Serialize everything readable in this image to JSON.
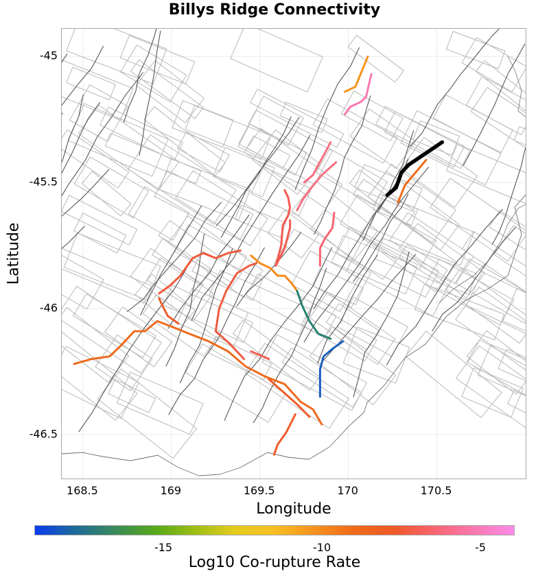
{
  "chart_data": {
    "type": "map-lines",
    "title": "Billys Ridge Connectivity",
    "xlabel": "Longitude",
    "ylabel": "Latitude",
    "xlim": [
      168.38,
      171.01
    ],
    "ylim": [
      -46.68,
      -44.89
    ],
    "x_ticks": [
      168.5,
      169,
      169.5,
      170,
      170.5
    ],
    "x_tick_labels": [
      "168.5",
      "169",
      "169.5",
      "170",
      "170.5"
    ],
    "y_ticks": [
      -45,
      -45.5,
      -46,
      -46.5
    ],
    "y_tick_labels": [
      "-45",
      "-45.5",
      "-46",
      "-46.5"
    ],
    "grid": true,
    "colorbar": {
      "label": "Log10 Co-rupture Rate",
      "range": [
        -19.07,
        -3.92
      ],
      "ticks": [
        -15,
        -10,
        -5
      ],
      "tick_labels": [
        "-15",
        "-10",
        "-5"
      ],
      "position": "bottom",
      "colors": [
        "#0a3cf0",
        "#1d6a9a",
        "#3a8a5a",
        "#56a81a",
        "#9cbe14",
        "#e4cc1c",
        "#f7bf24",
        "#f5911e",
        "#ef6a1a",
        "#ee5a28",
        "#f86470",
        "#fb78b0",
        "#fc8ce8"
      ]
    },
    "source_fault": {
      "name": "Billys Ridge",
      "color": "#000000",
      "path": [
        [
          170.22,
          -45.55
        ],
        [
          170.27,
          -45.52
        ],
        [
          170.3,
          -45.46
        ],
        [
          170.34,
          -45.43
        ],
        [
          170.53,
          -45.34
        ]
      ]
    },
    "connected_faults": [
      {
        "value": -7.3,
        "color": "#ef6a1a",
        "path": [
          [
            170.28,
            -45.58
          ],
          [
            170.32,
            -45.51
          ],
          [
            170.44,
            -45.41
          ]
        ]
      },
      {
        "value": -9.2,
        "color": "#f7941c",
        "path": [
          [
            169.98,
            -45.14
          ],
          [
            170.04,
            -45.12
          ],
          [
            170.11,
            -45.0
          ]
        ]
      },
      {
        "value": -4.7,
        "color": "#fb78b0",
        "path": [
          [
            169.98,
            -45.23
          ],
          [
            170.01,
            -45.2
          ],
          [
            170.07,
            -45.18
          ],
          [
            170.1,
            -45.16
          ],
          [
            170.13,
            -45.07
          ]
        ]
      },
      {
        "value": -5.6,
        "color": "#f86e80",
        "path": [
          [
            169.75,
            -45.5
          ],
          [
            169.8,
            -45.47
          ],
          [
            169.83,
            -45.43
          ],
          [
            169.87,
            -45.38
          ],
          [
            169.9,
            -45.34
          ]
        ]
      },
      {
        "value": -5.6,
        "color": "#f86e80",
        "path": [
          [
            169.71,
            -45.61
          ],
          [
            169.74,
            -45.57
          ],
          [
            169.78,
            -45.53
          ],
          [
            169.85,
            -45.47
          ],
          [
            169.93,
            -45.42
          ]
        ]
      },
      {
        "value": -5.8,
        "color": "#f86472",
        "path": [
          [
            169.84,
            -45.83
          ],
          [
            169.84,
            -45.76
          ],
          [
            169.87,
            -45.72
          ],
          [
            169.91,
            -45.68
          ],
          [
            169.92,
            -45.62
          ]
        ]
      },
      {
        "value": -6.4,
        "color": "#f45a50",
        "path": [
          [
            169.59,
            -45.83
          ],
          [
            169.62,
            -45.75
          ],
          [
            169.63,
            -45.67
          ],
          [
            169.66,
            -45.63
          ],
          [
            169.67,
            -45.6
          ],
          [
            169.66,
            -45.56
          ],
          [
            169.64,
            -45.53
          ]
        ]
      },
      {
        "value": -6.4,
        "color": "#f45a50",
        "path": [
          [
            169.59,
            -45.83
          ],
          [
            169.64,
            -45.76
          ],
          [
            169.67,
            -45.68
          ],
          [
            169.67,
            -45.65
          ]
        ]
      },
      {
        "value": -6.8,
        "color": "#f05a40",
        "path": [
          [
            169.25,
            -46.09
          ],
          [
            169.27,
            -46.0
          ],
          [
            169.31,
            -45.93
          ],
          [
            169.37,
            -45.86
          ],
          [
            169.44,
            -45.83
          ],
          [
            169.48,
            -45.82
          ]
        ]
      },
      {
        "value": -6.8,
        "color": "#f05a40",
        "path": [
          [
            169.25,
            -46.09
          ],
          [
            169.33,
            -46.14
          ],
          [
            169.41,
            -46.2
          ]
        ]
      },
      {
        "value": -6.3,
        "color": "#f45a50",
        "path": [
          [
            169.45,
            -46.17
          ],
          [
            169.55,
            -46.2
          ]
        ]
      },
      {
        "value": -6.9,
        "color": "#f05a3a",
        "path": [
          [
            168.93,
            -45.94
          ],
          [
            168.99,
            -45.91
          ],
          [
            169.05,
            -45.87
          ],
          [
            169.12,
            -45.8
          ],
          [
            169.18,
            -45.78
          ],
          [
            169.25,
            -45.8
          ],
          [
            169.32,
            -45.78
          ],
          [
            169.39,
            -45.77
          ]
        ]
      },
      {
        "value": -8.5,
        "color": "#f7891c",
        "path": [
          [
            169.45,
            -45.79
          ],
          [
            169.5,
            -45.82
          ],
          [
            169.56,
            -45.84
          ],
          [
            169.6,
            -45.87
          ],
          [
            169.64,
            -45.87
          ],
          [
            169.68,
            -45.9
          ],
          [
            169.71,
            -45.93
          ]
        ]
      },
      {
        "value": -15.9,
        "color": "#268070",
        "path": [
          [
            169.71,
            -45.93
          ],
          [
            169.74,
            -45.99
          ],
          [
            169.78,
            -46.05
          ],
          [
            169.83,
            -46.1
          ],
          [
            169.9,
            -46.12
          ]
        ]
      },
      {
        "value": -17.8,
        "color": "#1b5fc0",
        "path": [
          [
            169.84,
            -46.35
          ],
          [
            169.84,
            -46.24
          ],
          [
            169.86,
            -46.19
          ],
          [
            169.91,
            -46.16
          ],
          [
            169.97,
            -46.13
          ]
        ]
      },
      {
        "value": -7.5,
        "color": "#ee6a1c",
        "path": [
          [
            168.45,
            -46.22
          ],
          [
            168.55,
            -46.2
          ],
          [
            168.65,
            -46.19
          ],
          [
            168.71,
            -46.15
          ],
          [
            168.79,
            -46.09
          ],
          [
            168.85,
            -46.09
          ],
          [
            168.92,
            -46.05
          ],
          [
            169.03,
            -46.08
          ],
          [
            169.1,
            -46.1
          ],
          [
            169.21,
            -46.13
          ],
          [
            169.32,
            -46.17
          ],
          [
            169.42,
            -46.23
          ],
          [
            169.53,
            -46.27
          ],
          [
            169.64,
            -46.3
          ],
          [
            169.73,
            -46.37
          ],
          [
            169.8,
            -46.4
          ],
          [
            169.85,
            -46.46
          ]
        ]
      },
      {
        "value": -7.1,
        "color": "#ee5c2a",
        "path": [
          [
            169.55,
            -46.28
          ],
          [
            169.63,
            -46.33
          ],
          [
            169.71,
            -46.38
          ],
          [
            169.78,
            -46.43
          ]
        ]
      },
      {
        "value": -7.0,
        "color": "#ee5c2a",
        "path": [
          [
            168.93,
            -45.96
          ],
          [
            168.95,
            -45.99
          ],
          [
            168.98,
            -46.03
          ],
          [
            169.04,
            -46.06
          ]
        ]
      },
      {
        "value": -7.0,
        "color": "#ee5c2a",
        "path": [
          [
            169.58,
            -46.58
          ],
          [
            169.6,
            -46.54
          ],
          [
            169.65,
            -46.49
          ],
          [
            169.7,
            -46.42
          ]
        ]
      }
    ]
  }
}
